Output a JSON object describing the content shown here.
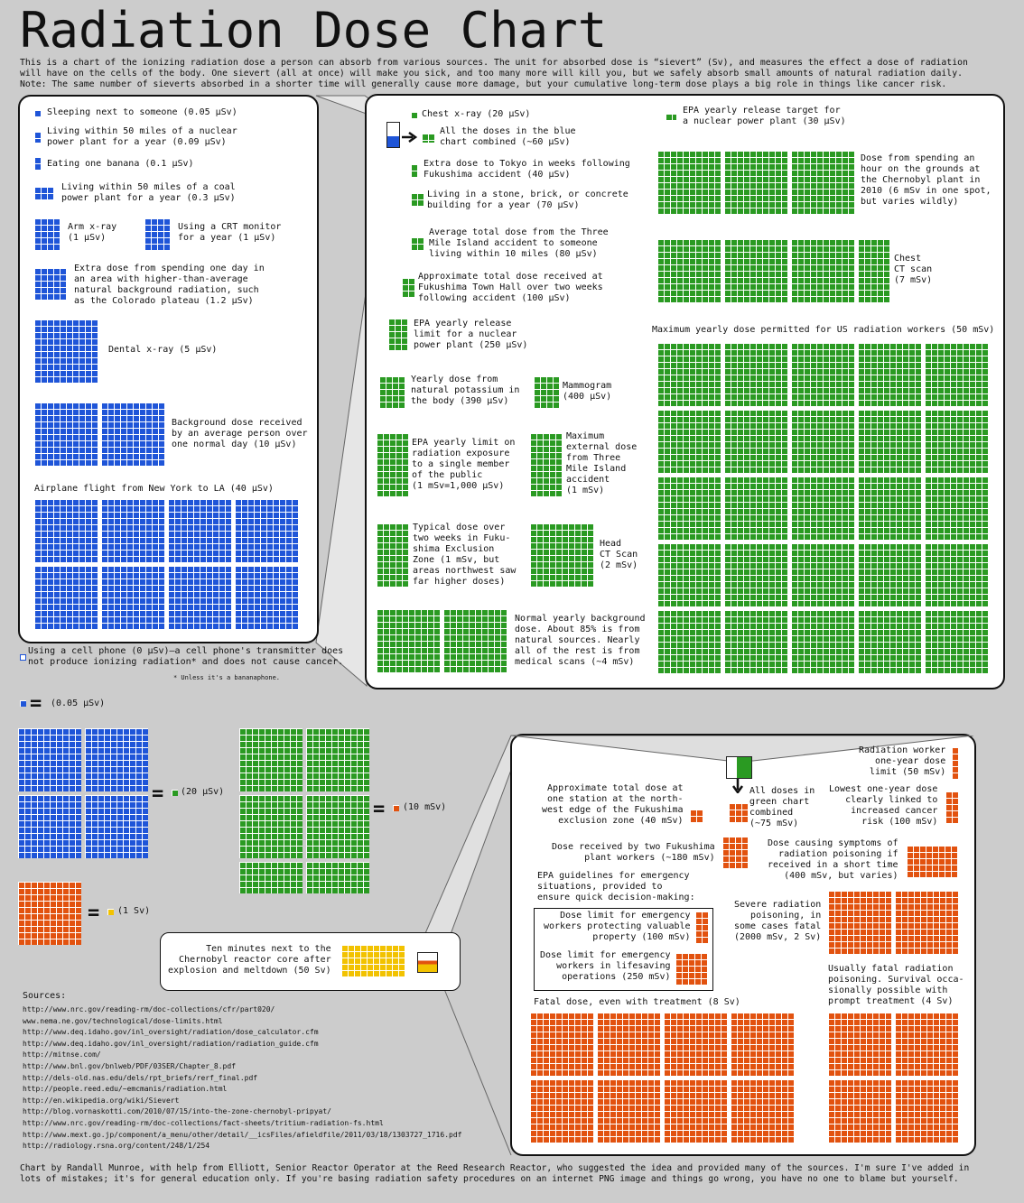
{
  "title": "Radiation Dose Chart",
  "intro": "This is a chart of the ionizing radiation dose a person can absorb from various sources. The unit for absorbed dose is “sievert” (Sv), and measures the effect a dose of radiation\nwill have on the cells of the body. One sievert (all at once) will make you sick, and too many more will kill you, but we safely absorb small amounts of natural radiation daily.\nNote: The same number of sieverts absorbed in a shorter time will generally cause more damage, but your cumulative long-term dose plays a big role in things like cancer risk.",
  "colors": {
    "blue": "#1f55d8",
    "green": "#2a9a22",
    "orange": "#e2520f",
    "yellow": "#f2c200"
  },
  "blue_panel": {
    "sleeping": "Sleeping next to someone (0.05 μSv)",
    "nuclear_plant": "Living within 50 miles of a nuclear\npower plant for a year (0.09 μSv)",
    "banana": "Eating one banana (0.1 μSv)",
    "coal_plant": "Living within 50 miles of a coal\npower plant for a year (0.3 μSv)",
    "arm_xray": "Arm x-ray\n(1 μSv)",
    "crt": "Using a CRT monitor\nfor a year (1 μSv)",
    "colorado": "Extra dose from spending one day in\nan area with higher-than-average\nnatural background radiation, such\nas the Colorado plateau (1.2 μSv)",
    "dental": "Dental x-ray (5 μSv)",
    "background_day": "Background dose received\nby an average person over\none normal day (10 μSv)",
    "airplane": "Airplane flight from New York to LA (40 μSv)",
    "cell_phone": "Using a cell phone (0 μSv)—a cell phone's transmitter does\nnot produce ionizing radiation* and does not cause cancer.",
    "footnote": "* Unless it's a bananaphone."
  },
  "green_panel": {
    "chest_xray": "Chest x-ray (20 μSv)",
    "blue_combined": "All the doses in the blue\nchart combined (~60 μSv)",
    "tokyo": "Extra dose to Tokyo in weeks following\nFukushima accident (40 μSv)",
    "stone_building": "Living in a stone, brick, or concrete\nbuilding for a year (70 μSv)",
    "three_mile": "Average total dose from the Three\nMile Island accident to someone\nliving within 10 miles (80 μSv)",
    "fukushima_town_hall": "Approximate total dose received at\nFukushima Town Hall over two weeks\nfollowing accident (100 μSv)",
    "epa_release_limit": "EPA yearly release\nlimit for a nuclear\npower plant (250 μSv)",
    "potassium": "Yearly dose from\nnatural potassium in\nthe body (390 μSv)",
    "mammogram": "Mammogram\n(400 μSv)",
    "epa_public": "EPA yearly limit on\nradiation exposure\nto a single member\nof the public\n(1 mSv=1,000 μSv)",
    "tmi_external": "Maximum\nexternal dose\nfrom Three\nMile Island\naccident\n(1 mSv)",
    "fukushima_zone": "Typical dose over\ntwo weeks in Fuku-\nshima Exclusion\nZone (1 mSv, but\nareas northwest saw\nfar higher doses)",
    "head_ct": "Head\nCT Scan\n(2 mSv)",
    "normal_yearly": "Normal yearly background\ndose. About 85% is from\nnatural sources. Nearly\nall of the rest is from\nmedical scans (~4 mSv)",
    "epa_release_target": "EPA yearly release target for\na nuclear power plant (30 μSv)",
    "chernobyl_hour": "Dose from spending an\nhour on the grounds at\nthe Chernobyl plant in\n2010 (6 mSv in one spot,\nbut varies wildly)",
    "chest_ct": "Chest\nCT scan\n(7 mSv)",
    "max_workers": "Maximum yearly dose permitted for US radiation workers (50 mSv)"
  },
  "scale": {
    "blue_unit": "(0.05 μSv)",
    "green_unit": "(20 μSv)",
    "orange_unit": "(10 mSv)",
    "yellow_unit": "(1 Sv)",
    "equals": "="
  },
  "chernobyl_core": "Ten minutes next to the\nChernobyl reactor core after\nexplosion and meltdown (50 Sv)",
  "orange_panel": {
    "worker_limit": "Radiation worker\none-year dose\nlimit (50 mSv)",
    "exclusion_edge": "Approximate total dose at\none station at the north-\nwest edge of the Fukushima\nexclusion zone (40 mSv)",
    "green_combined": "All doses in\ngreen chart\ncombined\n(~75 mSv)",
    "cancer_risk": "Lowest one-year dose\nclearly linked to\nincreased cancer\nrisk (100 mSv)",
    "two_workers": "Dose received by two Fukushima\nplant workers (~180 mSv)",
    "poisoning_symptoms": "Dose causing symptoms of\nradiation poisoning if\nreceived in a short time\n(400 mSv, but varies)",
    "epa_guidelines": "EPA guidelines for emergency\nsituations, provided to\nensure quick decision-making:",
    "property_limit": "Dose limit for emergency\nworkers protecting valuable\nproperty (100 mSv)",
    "lifesaving_limit": "Dose limit for emergency\nworkers in lifesaving\noperations (250 mSv)",
    "severe_poisoning": "Severe radiation\npoisoning, in\nsome cases fatal\n(2000 mSv, 2 Sv)",
    "usually_fatal": "Usually fatal radiation\npoisoning. Survival occa-\nsionally possible with\nprompt treatment (4 Sv)",
    "fatal_dose": "Fatal dose, even with treatment (8 Sv)"
  },
  "sources": {
    "label": "Sources:",
    "links": [
      "http://www.nrc.gov/reading-rm/doc-collections/cfr/part020/",
      "www.nema.ne.gov/technological/dose-limits.html",
      "http://www.deq.idaho.gov/inl_oversight/radiation/dose_calculator.cfm",
      "http://www.deq.idaho.gov/inl_oversight/radiation/radiation_guide.cfm",
      "http://mitnse.com/",
      "http://www.bnl.gov/bnlweb/PDF/03SER/Chapter_8.pdf",
      "http://dels-old.nas.edu/dels/rpt_briefs/rerf_final.pdf",
      "http://people.reed.edu/~emcmanis/radiation.html",
      "http://en.wikipedia.org/wiki/Sievert",
      "http://blog.vornaskotti.com/2010/07/15/into-the-zone-chernobyl-pripyat/",
      "http://www.nrc.gov/reading-rm/doc-collections/fact-sheets/tritium-radiation-fs.html",
      "http://www.mext.go.jp/component/a_menu/other/detail/__icsFiles/afieldfile/2011/03/18/1303727_1716.pdf",
      "http://radiology.rsna.org/content/248/1/254"
    ]
  },
  "footer": "Chart by Randall Munroe, with help from Elliott, Senior Reactor Operator at the Reed Research Reactor, who suggested the idea and provided many of the sources. I'm sure I've added in\nlots of mistakes; it's for general education only. If you're basing radiation safety procedures on an internet PNG image and things go wrong, you have no one to blame but yourself."
}
